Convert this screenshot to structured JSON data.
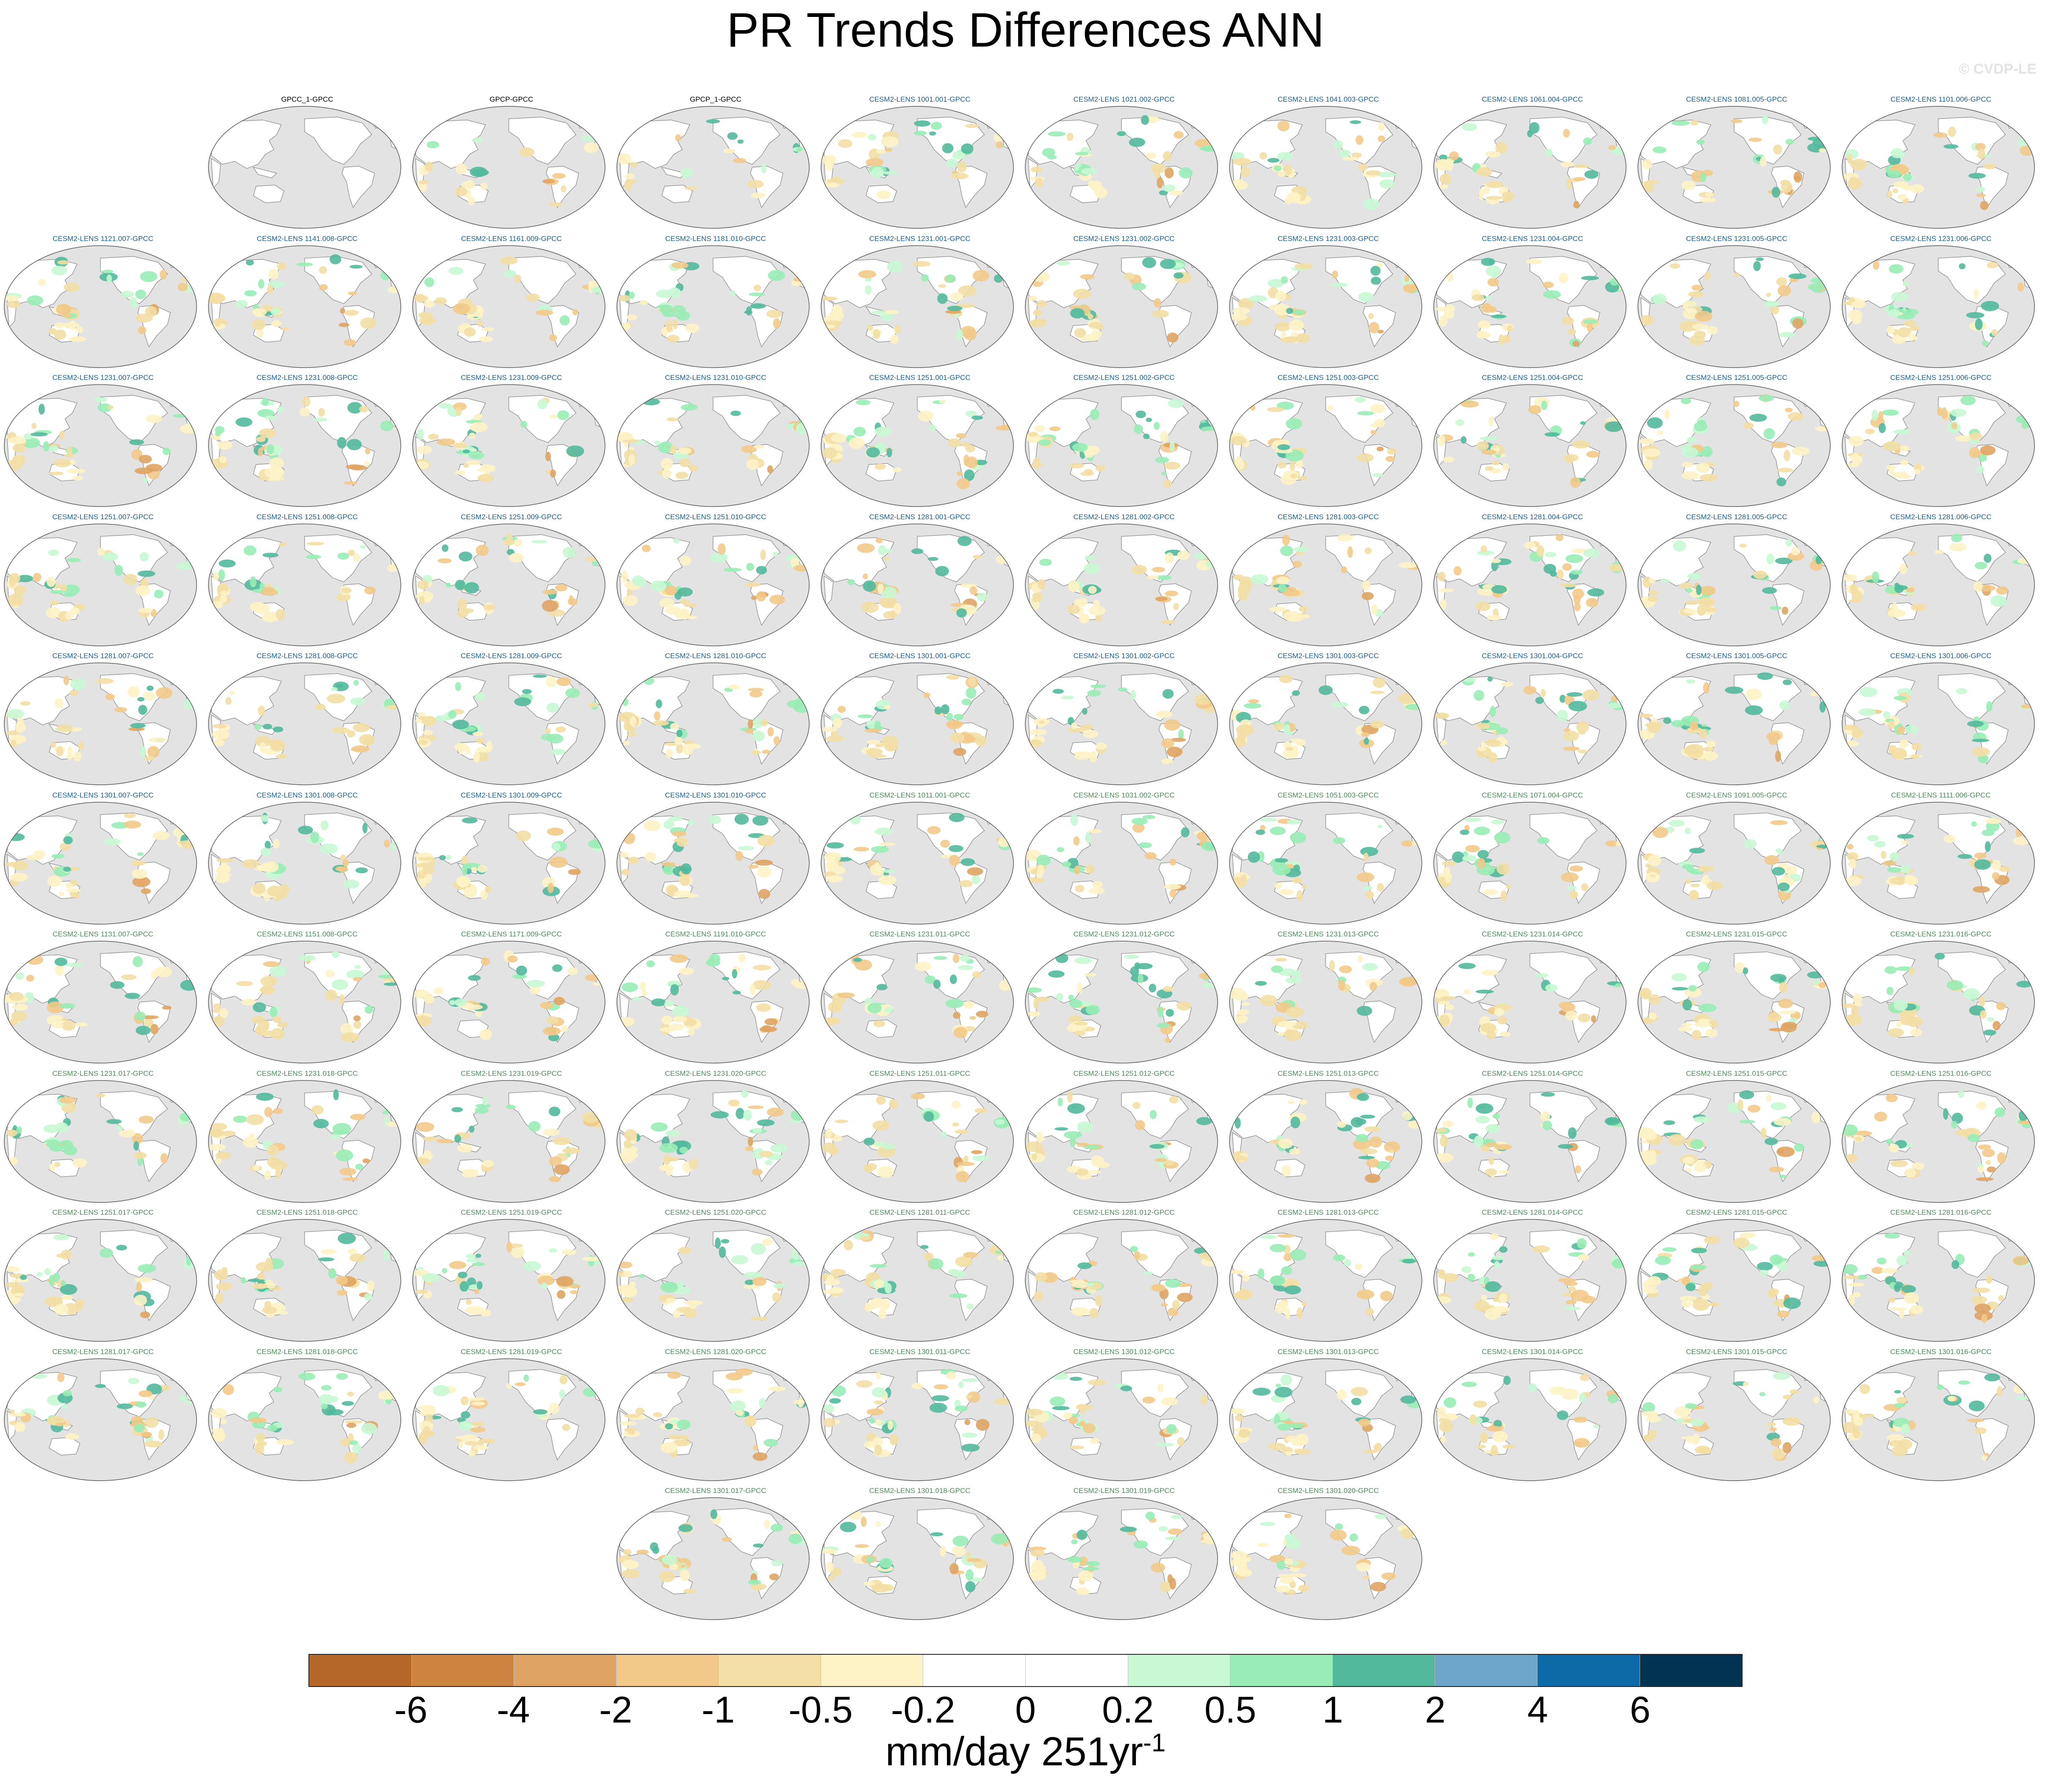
{
  "title": "PR Trends Differences ANN",
  "watermark": "© CVDP-LE",
  "chart_data": {
    "type": "map-panel-grid",
    "projection": "Robinson (Pacific-centered)",
    "variable": "PR",
    "season": "ANN",
    "colorbar": {
      "colors": [
        "#b5672a",
        "#cd8441",
        "#dfa464",
        "#f2c989",
        "#f3dfa5",
        "#fdf3c6",
        "#ffffff",
        "#ffffff",
        "#c8f8d4",
        "#99ecb6",
        "#52b99d",
        "#6ea6c9",
        "#0e6aa6",
        "#003452"
      ],
      "ticks": [
        "-6",
        "-4",
        "-2",
        "-1",
        "-0.5",
        "-0.2",
        "0",
        "0.2",
        "0.5",
        "1",
        "2",
        "4",
        "6"
      ],
      "units_main": "mm/day 251yr",
      "units_sup": "-1"
    },
    "panels": [
      {
        "label": "GPCC_1-GPCC",
        "group": "obs"
      },
      {
        "label": "GPCP-GPCC",
        "group": "obs"
      },
      {
        "label": "GPCP_1-GPCC",
        "group": "obs"
      },
      {
        "label": "CESM2-LENS 1001.001-GPCC",
        "group": "A"
      },
      {
        "label": "CESM2-LENS 1021.002-GPCC",
        "group": "A"
      },
      {
        "label": "CESM2-LENS 1041.003-GPCC",
        "group": "A"
      },
      {
        "label": "CESM2-LENS 1061.004-GPCC",
        "group": "A"
      },
      {
        "label": "CESM2-LENS 1081.005-GPCC",
        "group": "A"
      },
      {
        "label": "CESM2-LENS 1101.006-GPCC",
        "group": "A"
      },
      {
        "label": "CESM2-LENS 1121.007-GPCC",
        "group": "A"
      },
      {
        "label": "CESM2-LENS 1141.008-GPCC",
        "group": "A"
      },
      {
        "label": "CESM2-LENS 1161.009-GPCC",
        "group": "A"
      },
      {
        "label": "CESM2-LENS 1181.010-GPCC",
        "group": "A"
      },
      {
        "label": "CESM2-LENS 1231.001-GPCC",
        "group": "A"
      },
      {
        "label": "CESM2-LENS 1231.002-GPCC",
        "group": "A"
      },
      {
        "label": "CESM2-LENS 1231.003-GPCC",
        "group": "A"
      },
      {
        "label": "CESM2-LENS 1231.004-GPCC",
        "group": "A"
      },
      {
        "label": "CESM2-LENS 1231.005-GPCC",
        "group": "A"
      },
      {
        "label": "CESM2-LENS 1231.006-GPCC",
        "group": "A"
      },
      {
        "label": "CESM2-LENS 1231.007-GPCC",
        "group": "A"
      },
      {
        "label": "CESM2-LENS 1231.008-GPCC",
        "group": "A"
      },
      {
        "label": "CESM2-LENS 1231.009-GPCC",
        "group": "A"
      },
      {
        "label": "CESM2-LENS 1231.010-GPCC",
        "group": "A"
      },
      {
        "label": "CESM2-LENS 1251.001-GPCC",
        "group": "A"
      },
      {
        "label": "CESM2-LENS 1251.002-GPCC",
        "group": "A"
      },
      {
        "label": "CESM2-LENS 1251.003-GPCC",
        "group": "A"
      },
      {
        "label": "CESM2-LENS 1251.004-GPCC",
        "group": "A"
      },
      {
        "label": "CESM2-LENS 1251.005-GPCC",
        "group": "A"
      },
      {
        "label": "CESM2-LENS 1251.006-GPCC",
        "group": "A"
      },
      {
        "label": "CESM2-LENS 1251.007-GPCC",
        "group": "A"
      },
      {
        "label": "CESM2-LENS 1251.008-GPCC",
        "group": "A"
      },
      {
        "label": "CESM2-LENS 1251.009-GPCC",
        "group": "A"
      },
      {
        "label": "CESM2-LENS 1251.010-GPCC",
        "group": "A"
      },
      {
        "label": "CESM2-LENS 1281.001-GPCC",
        "group": "A"
      },
      {
        "label": "CESM2-LENS 1281.002-GPCC",
        "group": "A"
      },
      {
        "label": "CESM2-LENS 1281.003-GPCC",
        "group": "A"
      },
      {
        "label": "CESM2-LENS 1281.004-GPCC",
        "group": "A"
      },
      {
        "label": "CESM2-LENS 1281.005-GPCC",
        "group": "A"
      },
      {
        "label": "CESM2-LENS 1281.006-GPCC",
        "group": "A"
      },
      {
        "label": "CESM2-LENS 1281.007-GPCC",
        "group": "A"
      },
      {
        "label": "CESM2-LENS 1281.008-GPCC",
        "group": "A"
      },
      {
        "label": "CESM2-LENS 1281.009-GPCC",
        "group": "A"
      },
      {
        "label": "CESM2-LENS 1281.010-GPCC",
        "group": "A"
      },
      {
        "label": "CESM2-LENS 1301.001-GPCC",
        "group": "A"
      },
      {
        "label": "CESM2-LENS 1301.002-GPCC",
        "group": "A"
      },
      {
        "label": "CESM2-LENS 1301.003-GPCC",
        "group": "A"
      },
      {
        "label": "CESM2-LENS 1301.004-GPCC",
        "group": "A"
      },
      {
        "label": "CESM2-LENS 1301.005-GPCC",
        "group": "A"
      },
      {
        "label": "CESM2-LENS 1301.006-GPCC",
        "group": "A"
      },
      {
        "label": "CESM2-LENS 1301.007-GPCC",
        "group": "A"
      },
      {
        "label": "CESM2-LENS 1301.008-GPCC",
        "group": "A"
      },
      {
        "label": "CESM2-LENS 1301.009-GPCC",
        "group": "A"
      },
      {
        "label": "CESM2-LENS 1301.010-GPCC",
        "group": "A"
      },
      {
        "label": "CESM2-LENS 1011.001-GPCC",
        "group": "B"
      },
      {
        "label": "CESM2-LENS 1031.002-GPCC",
        "group": "B"
      },
      {
        "label": "CESM2-LENS 1051.003-GPCC",
        "group": "B"
      },
      {
        "label": "CESM2-LENS 1071.004-GPCC",
        "group": "B"
      },
      {
        "label": "CESM2-LENS 1091.005-GPCC",
        "group": "B"
      },
      {
        "label": "CESM2-LENS 1111.006-GPCC",
        "group": "B"
      },
      {
        "label": "CESM2-LENS 1131.007-GPCC",
        "group": "B"
      },
      {
        "label": "CESM2-LENS 1151.008-GPCC",
        "group": "B"
      },
      {
        "label": "CESM2-LENS 1171.009-GPCC",
        "group": "B"
      },
      {
        "label": "CESM2-LENS 1191.010-GPCC",
        "group": "B"
      },
      {
        "label": "CESM2-LENS 1231.011-GPCC",
        "group": "B"
      },
      {
        "label": "CESM2-LENS 1231.012-GPCC",
        "group": "B"
      },
      {
        "label": "CESM2-LENS 1231.013-GPCC",
        "group": "B"
      },
      {
        "label": "CESM2-LENS 1231.014-GPCC",
        "group": "B"
      },
      {
        "label": "CESM2-LENS 1231.015-GPCC",
        "group": "B"
      },
      {
        "label": "CESM2-LENS 1231.016-GPCC",
        "group": "B"
      },
      {
        "label": "CESM2-LENS 1231.017-GPCC",
        "group": "B"
      },
      {
        "label": "CESM2-LENS 1231.018-GPCC",
        "group": "B"
      },
      {
        "label": "CESM2-LENS 1231.019-GPCC",
        "group": "B"
      },
      {
        "label": "CESM2-LENS 1231.020-GPCC",
        "group": "B"
      },
      {
        "label": "CESM2-LENS 1251.011-GPCC",
        "group": "B"
      },
      {
        "label": "CESM2-LENS 1251.012-GPCC",
        "group": "B"
      },
      {
        "label": "CESM2-LENS 1251.013-GPCC",
        "group": "B"
      },
      {
        "label": "CESM2-LENS 1251.014-GPCC",
        "group": "B"
      },
      {
        "label": "CESM2-LENS 1251.015-GPCC",
        "group": "B"
      },
      {
        "label": "CESM2-LENS 1251.016-GPCC",
        "group": "B"
      },
      {
        "label": "CESM2-LENS 1251.017-GPCC",
        "group": "B"
      },
      {
        "label": "CESM2-LENS 1251.018-GPCC",
        "group": "B"
      },
      {
        "label": "CESM2-LENS 1251.019-GPCC",
        "group": "B"
      },
      {
        "label": "CESM2-LENS 1251.020-GPCC",
        "group": "B"
      },
      {
        "label": "CESM2-LENS 1281.011-GPCC",
        "group": "B"
      },
      {
        "label": "CESM2-LENS 1281.012-GPCC",
        "group": "B"
      },
      {
        "label": "CESM2-LENS 1281.013-GPCC",
        "group": "B"
      },
      {
        "label": "CESM2-LENS 1281.014-GPCC",
        "group": "B"
      },
      {
        "label": "CESM2-LENS 1281.015-GPCC",
        "group": "B"
      },
      {
        "label": "CESM2-LENS 1281.016-GPCC",
        "group": "B"
      },
      {
        "label": "CESM2-LENS 1281.017-GPCC",
        "group": "B"
      },
      {
        "label": "CESM2-LENS 1281.018-GPCC",
        "group": "B"
      },
      {
        "label": "CESM2-LENS 1281.019-GPCC",
        "group": "B"
      },
      {
        "label": "CESM2-LENS 1281.020-GPCC",
        "group": "B"
      },
      {
        "label": "CESM2-LENS 1301.011-GPCC",
        "group": "B"
      },
      {
        "label": "CESM2-LENS 1301.012-GPCC",
        "group": "B"
      },
      {
        "label": "CESM2-LENS 1301.013-GPCC",
        "group": "B"
      },
      {
        "label": "CESM2-LENS 1301.014-GPCC",
        "group": "B"
      },
      {
        "label": "CESM2-LENS 1301.015-GPCC",
        "group": "B"
      },
      {
        "label": "CESM2-LENS 1301.016-GPCC",
        "group": "B"
      },
      {
        "label": "CESM2-LENS 1301.017-GPCC",
        "group": "B"
      },
      {
        "label": "CESM2-LENS 1301.018-GPCC",
        "group": "B"
      },
      {
        "label": "CESM2-LENS 1301.019-GPCC",
        "group": "B"
      },
      {
        "label": "CESM2-LENS 1301.020-GPCC",
        "group": "B"
      }
    ],
    "group_label_colors": {
      "obs": "#000000",
      "A": "#1d5f8a",
      "B": "#4f8a5c"
    }
  }
}
